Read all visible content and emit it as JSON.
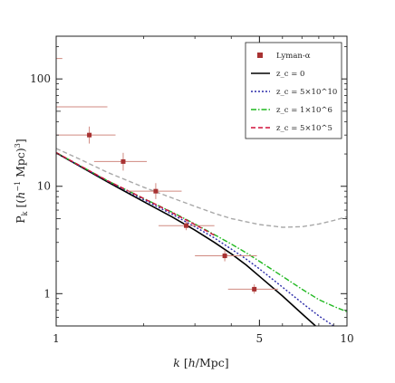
{
  "chart_data": {
    "type": "line",
    "xlabel": "k [h/Mpc]",
    "ylabel": "P_k [(h^-1 Mpc)^3]",
    "x_scale": "log",
    "y_scale": "log",
    "xlim": [
      1,
      10
    ],
    "ylim": [
      0.5,
      250
    ],
    "x_ticks": [
      {
        "value": 1,
        "label": "1"
      },
      {
        "value": 5,
        "label": "5"
      },
      {
        "value": 10,
        "label": "10"
      }
    ],
    "y_ticks": [
      {
        "value": 1,
        "label": "1"
      },
      {
        "value": 10,
        "label": "10"
      },
      {
        "value": 100,
        "label": "100"
      }
    ],
    "grid": false,
    "legend_position": "top-right",
    "legend": [
      {
        "label": "Lyman-α",
        "kind": "marker",
        "color": "#a83232"
      },
      {
        "label": "z_c = 0",
        "kind": "line",
        "color": "#000000",
        "dash": "solid"
      },
      {
        "label": "z_c = 5×10^10",
        "kind": "line",
        "color": "#2a2aa8",
        "dash": "dotted"
      },
      {
        "label": "z_c = 1×10^6",
        "kind": "line",
        "color": "#1fb81f",
        "dash": "dashdot"
      },
      {
        "label": "z_c = 5×10^5",
        "kind": "line",
        "color": "#d0103a",
        "dash": "dashed"
      }
    ],
    "series": [
      {
        "label_ref": 1,
        "color": "#000000",
        "dash": "solid",
        "points": [
          [
            1.0,
            20.5
          ],
          [
            1.2,
            15.5
          ],
          [
            1.5,
            11.0
          ],
          [
            2.0,
            7.2
          ],
          [
            2.5,
            5.2
          ],
          [
            3.0,
            3.9
          ],
          [
            3.5,
            3.0
          ],
          [
            4.0,
            2.35
          ],
          [
            4.5,
            1.85
          ],
          [
            5.0,
            1.45
          ],
          [
            6.0,
            0.95
          ],
          [
            7.0,
            0.65
          ],
          [
            8.0,
            0.47
          ]
        ]
      },
      {
        "label_ref": 2,
        "color": "#2a2aa8",
        "dash": "dotted",
        "points": [
          [
            1.0,
            20.5
          ],
          [
            1.2,
            15.6
          ],
          [
            1.5,
            11.2
          ],
          [
            2.0,
            7.5
          ],
          [
            2.5,
            5.5
          ],
          [
            3.0,
            4.2
          ],
          [
            3.5,
            3.3
          ],
          [
            4.0,
            2.6
          ],
          [
            4.5,
            2.1
          ],
          [
            5.0,
            1.7
          ],
          [
            6.0,
            1.15
          ],
          [
            7.0,
            0.82
          ],
          [
            8.0,
            0.62
          ],
          [
            9.0,
            0.5
          ]
        ]
      },
      {
        "label_ref": 3,
        "color": "#1fb81f",
        "dash": "dashdot",
        "points": [
          [
            1.0,
            20.6
          ],
          [
            1.2,
            15.7
          ],
          [
            1.5,
            11.3
          ],
          [
            2.0,
            7.7
          ],
          [
            2.5,
            5.75
          ],
          [
            3.0,
            4.45
          ],
          [
            3.5,
            3.55
          ],
          [
            4.0,
            2.9
          ],
          [
            4.5,
            2.4
          ],
          [
            5.0,
            2.0
          ],
          [
            6.0,
            1.45
          ],
          [
            7.0,
            1.1
          ],
          [
            8.0,
            0.88
          ],
          [
            9.0,
            0.76
          ],
          [
            10.0,
            0.68
          ]
        ]
      },
      {
        "label_ref": 4,
        "color": "#d0103a",
        "dash": "dashed",
        "points": [
          [
            1.0,
            20.6
          ],
          [
            1.2,
            15.7
          ],
          [
            1.5,
            11.3
          ],
          [
            2.0,
            7.7
          ],
          [
            2.5,
            5.7
          ],
          [
            3.0,
            4.4
          ],
          [
            3.5,
            3.5
          ]
        ]
      },
      {
        "name": "",
        "color": "#a8a8a8",
        "dash": "dashed",
        "points": [
          [
            1.0,
            22.5
          ],
          [
            1.2,
            18.0
          ],
          [
            1.5,
            13.5
          ],
          [
            2.0,
            9.8
          ],
          [
            2.5,
            7.8
          ],
          [
            3.0,
            6.5
          ],
          [
            3.5,
            5.6
          ],
          [
            4.0,
            5.0
          ],
          [
            5.0,
            4.4
          ],
          [
            6.0,
            4.15
          ],
          [
            7.0,
            4.2
          ],
          [
            8.0,
            4.45
          ],
          [
            9.0,
            4.8
          ],
          [
            10.0,
            5.2
          ]
        ]
      }
    ],
    "lyman_alpha_points": [
      {
        "x": 1.3,
        "y": 30.0,
        "xerr": [
          1.0,
          1.6
        ],
        "yerr": [
          25.0,
          36.0
        ]
      },
      {
        "x": 1.7,
        "y": 17.0,
        "xerr": [
          1.35,
          2.05
        ],
        "yerr": [
          14.0,
          20.5
        ]
      },
      {
        "x": 2.2,
        "y": 9.0,
        "xerr": [
          1.75,
          2.7
        ],
        "yerr": [
          7.6,
          10.7
        ]
      },
      {
        "x": 2.8,
        "y": 4.3,
        "xerr": [
          2.25,
          3.5
        ],
        "yerr": [
          3.9,
          4.8
        ]
      },
      {
        "x": 3.8,
        "y": 2.25,
        "xerr": [
          3.0,
          4.9
        ],
        "yerr": [
          2.0,
          2.55
        ]
      },
      {
        "x": 4.8,
        "y": 1.1,
        "xerr": [
          3.9,
          5.8
        ],
        "yerr": [
          1.0,
          1.22
        ]
      },
      {
        "x": 1.0,
        "y": 55.0,
        "xerr": [
          1.0,
          1.5
        ],
        "yerr": [
          55.0,
          55.0
        ]
      },
      {
        "x": 1.0,
        "y": 155.0,
        "xerr": [
          1.0,
          1.05
        ],
        "yerr": [
          155.0,
          155.0
        ]
      }
    ]
  }
}
